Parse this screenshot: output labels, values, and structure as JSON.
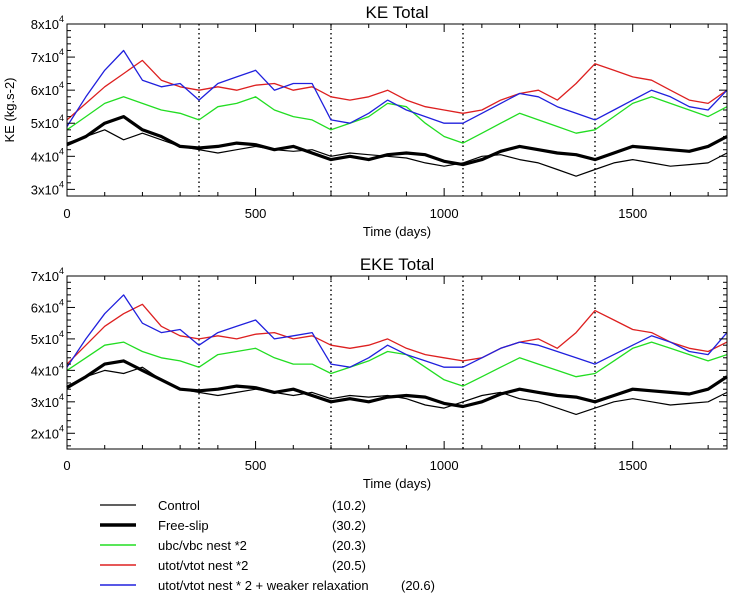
{
  "chart_data": [
    {
      "type": "line",
      "title": "KE Total",
      "xlabel": "Time (days)",
      "ylabel": "KE (kg.s-2)",
      "xlim": [
        0,
        1750
      ],
      "ylim": [
        28000,
        80000
      ],
      "xticks": [
        0,
        500,
        1000,
        1500
      ],
      "xtick_labels": [
        "0",
        "500",
        "1000",
        "1500"
      ],
      "yticks": [
        30000,
        40000,
        50000,
        60000,
        70000,
        80000
      ],
      "ytick_labels": [
        {
          "base": "3x10",
          "exp": "4"
        },
        {
          "base": "4x10",
          "exp": "4"
        },
        {
          "base": "5x10",
          "exp": "4"
        },
        {
          "base": "6x10",
          "exp": "4"
        },
        {
          "base": "7x10",
          "exp": "4"
        },
        {
          "base": "8x10",
          "exp": "4"
        }
      ],
      "vlines": [
        350,
        700,
        1050,
        1400
      ],
      "grid": false,
      "x": [
        0,
        50,
        100,
        150,
        200,
        250,
        300,
        350,
        400,
        450,
        500,
        550,
        600,
        650,
        700,
        750,
        800,
        850,
        900,
        950,
        1000,
        1050,
        1100,
        1150,
        1200,
        1250,
        1300,
        1350,
        1400,
        1450,
        1500,
        1550,
        1600,
        1650,
        1700,
        1750
      ],
      "series": [
        {
          "color": "#000000",
          "width": 1.2,
          "values": [
            44000,
            46000,
            48000,
            45000,
            47000,
            45000,
            43000,
            42000,
            41000,
            42000,
            43000,
            42000,
            41500,
            42000,
            40000,
            41000,
            40500,
            40000,
            39500,
            38000,
            37000,
            38000,
            40000,
            40500,
            39000,
            38000,
            36000,
            34000,
            36000,
            38000,
            39000,
            38000,
            37000,
            37500,
            38000,
            41000
          ]
        },
        {
          "color": "#000000",
          "width": 3.2,
          "values": [
            43500,
            46000,
            50000,
            52000,
            48000,
            46000,
            43000,
            42500,
            43000,
            44000,
            43500,
            42000,
            43000,
            41000,
            39000,
            40000,
            39000,
            40500,
            41000,
            40500,
            38500,
            37500,
            39000,
            41500,
            43000,
            42000,
            41000,
            40500,
            39000,
            41000,
            43000,
            42500,
            42000,
            41500,
            43000,
            46000
          ]
        },
        {
          "color": "#22dd22",
          "width": 1.3,
          "values": [
            48000,
            52000,
            56000,
            58000,
            56000,
            54000,
            53000,
            51000,
            55000,
            56000,
            58000,
            54000,
            52000,
            51000,
            48000,
            50000,
            52000,
            56000,
            55000,
            50000,
            46000,
            44000,
            47000,
            50000,
            53000,
            51000,
            49000,
            47000,
            48000,
            52000,
            56000,
            58000,
            56000,
            54000,
            52000,
            55000
          ]
        },
        {
          "color": "#dd2020",
          "width": 1.3,
          "values": [
            51000,
            56000,
            61000,
            65000,
            69000,
            63000,
            61000,
            60000,
            61000,
            60000,
            61500,
            62000,
            60000,
            61000,
            58000,
            57000,
            58000,
            60000,
            57000,
            55000,
            54000,
            53000,
            54000,
            57000,
            59000,
            60000,
            57000,
            62000,
            68000,
            66000,
            64000,
            63000,
            60000,
            57000,
            56000,
            60000
          ]
        },
        {
          "color": "#2020dd",
          "width": 1.3,
          "values": [
            49000,
            58000,
            66000,
            72000,
            63000,
            61000,
            62000,
            57000,
            62000,
            64000,
            66000,
            60000,
            62000,
            62000,
            51000,
            50000,
            53000,
            57000,
            54000,
            52000,
            50000,
            50000,
            53000,
            56000,
            59000,
            58000,
            55000,
            53000,
            51000,
            54000,
            57000,
            60000,
            58000,
            55000,
            54000,
            60000
          ]
        }
      ]
    },
    {
      "type": "line",
      "title": "EKE Total",
      "xlabel": "Time (days)",
      "ylabel": "",
      "xlim": [
        0,
        1750
      ],
      "ylim": [
        15000,
        70000
      ],
      "xticks": [
        0,
        500,
        1000,
        1500
      ],
      "xtick_labels": [
        "0",
        "500",
        "1000",
        "1500"
      ],
      "yticks": [
        20000,
        30000,
        40000,
        50000,
        60000,
        70000
      ],
      "ytick_labels": [
        {
          "base": "2x10",
          "exp": "4"
        },
        {
          "base": "3x10",
          "exp": "4"
        },
        {
          "base": "4x10",
          "exp": "4"
        },
        {
          "base": "5x10",
          "exp": "4"
        },
        {
          "base": "6x10",
          "exp": "4"
        },
        {
          "base": "7x10",
          "exp": "4"
        }
      ],
      "vlines": [
        350,
        700,
        1050,
        1400
      ],
      "grid": false,
      "x": [
        0,
        50,
        100,
        150,
        200,
        250,
        300,
        350,
        400,
        450,
        500,
        550,
        600,
        650,
        700,
        750,
        800,
        850,
        900,
        950,
        1000,
        1050,
        1100,
        1150,
        1200,
        1250,
        1300,
        1350,
        1400,
        1450,
        1500,
        1550,
        1600,
        1650,
        1700,
        1750
      ],
      "series": [
        {
          "color": "#000000",
          "width": 1.2,
          "values": [
            35000,
            38000,
            40000,
            39000,
            41000,
            37000,
            34000,
            33000,
            32000,
            33000,
            34000,
            33000,
            32000,
            33000,
            31000,
            32000,
            31500,
            32000,
            31000,
            29000,
            28000,
            30000,
            32000,
            33000,
            31000,
            30000,
            28000,
            26000,
            28000,
            30000,
            31000,
            30000,
            29000,
            29500,
            30000,
            33000
          ]
        },
        {
          "color": "#000000",
          "width": 3.2,
          "values": [
            34500,
            38000,
            42000,
            43000,
            40000,
            37000,
            34000,
            33500,
            34000,
            35000,
            34500,
            33000,
            34000,
            32000,
            30000,
            31000,
            30000,
            31500,
            32000,
            31500,
            29500,
            28500,
            30000,
            32500,
            34000,
            33000,
            32000,
            31500,
            30000,
            32000,
            34000,
            33500,
            33000,
            32500,
            34000,
            38000
          ]
        },
        {
          "color": "#22dd22",
          "width": 1.3,
          "values": [
            40000,
            44000,
            48000,
            49000,
            46000,
            44000,
            43000,
            41000,
            45000,
            46000,
            47000,
            44000,
            42000,
            42000,
            39000,
            41000,
            43000,
            46000,
            45000,
            41000,
            37000,
            35000,
            38000,
            41000,
            44000,
            42000,
            40000,
            38000,
            39000,
            43000,
            47000,
            49000,
            47000,
            45000,
            43000,
            45000
          ]
        },
        {
          "color": "#dd2020",
          "width": 1.3,
          "values": [
            42000,
            48000,
            54000,
            58000,
            61000,
            54000,
            51000,
            50000,
            51000,
            50000,
            51500,
            52000,
            50000,
            51000,
            48000,
            47000,
            48000,
            50000,
            47000,
            45000,
            44000,
            43000,
            44000,
            47000,
            49000,
            50000,
            47000,
            52000,
            59000,
            56000,
            53000,
            52000,
            49000,
            47000,
            46000,
            49000
          ]
        },
        {
          "color": "#2020dd",
          "width": 1.3,
          "values": [
            41000,
            50000,
            58000,
            64000,
            55000,
            52000,
            53000,
            48000,
            52000,
            54000,
            56000,
            50000,
            51000,
            52000,
            42000,
            41000,
            44000,
            48000,
            45000,
            43000,
            41000,
            41000,
            44000,
            47000,
            49000,
            48000,
            46000,
            44000,
            42000,
            45000,
            48000,
            51000,
            49000,
            46000,
            45000,
            52000
          ]
        }
      ]
    }
  ],
  "legend": {
    "placement": "bottom",
    "items": [
      {
        "label": "Control",
        "value": "(10.2)",
        "color": "#000000",
        "width": 1.2
      },
      {
        "label": "Free-slip",
        "value": "(30.2)",
        "color": "#000000",
        "width": 3.6
      },
      {
        "label": "ubc/vbc nest *2",
        "value": "(20.3)",
        "color": "#22dd22",
        "width": 1.4
      },
      {
        "label": "utot/vtot nest *2",
        "value": "(20.5)",
        "color": "#dd2020",
        "width": 1.4
      },
      {
        "label": "utot/vtot nest * 2 + weaker relaxation",
        "value": "(20.6)",
        "color": "#2020dd",
        "width": 1.4
      }
    ]
  }
}
